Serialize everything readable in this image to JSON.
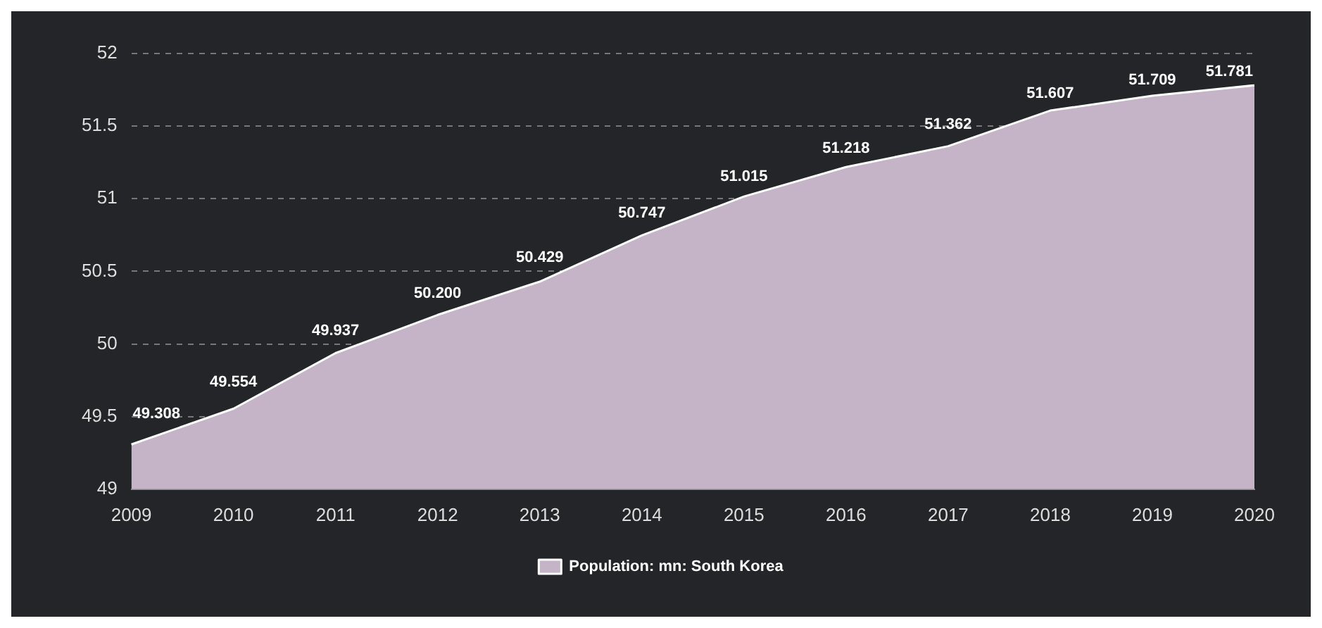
{
  "chart_data": {
    "type": "area",
    "categories": [
      "2009",
      "2010",
      "2011",
      "2012",
      "2013",
      "2014",
      "2015",
      "2016",
      "2017",
      "2018",
      "2019",
      "2020"
    ],
    "series": [
      {
        "name": "Population: mn: South Korea",
        "color": "#c5b3c8",
        "values": [
          49.308,
          49.554,
          49.937,
          50.2,
          50.429,
          50.747,
          51.015,
          51.218,
          51.362,
          51.607,
          51.709,
          51.781
        ],
        "value_labels": [
          "49.308",
          "49.554",
          "49.937",
          "50.200",
          "50.429",
          "50.747",
          "51.015",
          "51.218",
          "51.362",
          "51.607",
          "51.709",
          "51.781"
        ]
      }
    ],
    "ylim": [
      49,
      52
    ],
    "yticks": [
      49,
      49.5,
      50,
      50.5,
      51,
      51.5,
      52
    ],
    "grid": "y",
    "legend": "bottom"
  }
}
